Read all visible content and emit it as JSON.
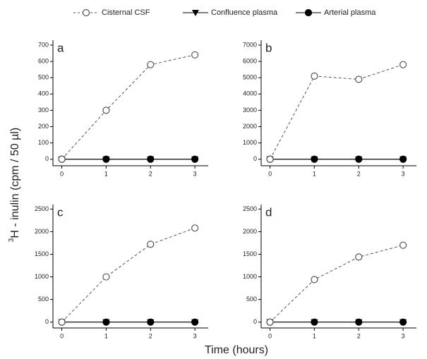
{
  "figure": {
    "ylabel_sup": "3",
    "ylabel": "H - inulin (cpm / 50 µl)",
    "xlabel": "Time (hours)"
  },
  "chart_data": [
    {
      "type": "line",
      "label": "a",
      "x": [
        0,
        1,
        2,
        3
      ],
      "xlim": [
        -0.2,
        3.3
      ],
      "xticks": [
        0,
        1,
        2,
        3
      ],
      "ylim": [
        -40,
        730
      ],
      "yticks": [
        0,
        100,
        200,
        300,
        400,
        500,
        600,
        700
      ],
      "series": [
        {
          "name": "Cisternal CSF",
          "color": "#555555",
          "marker": "open-circle",
          "dash": true,
          "values": [
            0,
            300,
            580,
            640
          ]
        },
        {
          "name": "Confluence plasma",
          "color": "#000000",
          "marker": "triangle",
          "dash": false,
          "values": [
            0,
            0,
            0,
            0
          ]
        },
        {
          "name": "Arterial plasma",
          "color": "#000000",
          "marker": "circle",
          "dash": false,
          "values": [
            0,
            0,
            0,
            0
          ]
        }
      ]
    },
    {
      "type": "line",
      "label": "b",
      "x": [
        0,
        1,
        2,
        3
      ],
      "xlim": [
        -0.2,
        3.3
      ],
      "xticks": [
        0,
        1,
        2,
        3
      ],
      "ylim": [
        -400,
        7300
      ],
      "yticks": [
        0,
        1000,
        2000,
        3000,
        4000,
        5000,
        6000,
        7000
      ],
      "series": [
        {
          "color": "#555555",
          "marker": "open-circle",
          "dash": true,
          "values": [
            0,
            5100,
            4900,
            5800
          ]
        },
        {
          "color": "#000000",
          "marker": "triangle",
          "dash": false,
          "values": [
            0,
            0,
            0,
            0
          ]
        },
        {
          "color": "#000000",
          "marker": "circle",
          "dash": false,
          "values": [
            0,
            0,
            0,
            0
          ]
        }
      ]
    },
    {
      "type": "line",
      "label": "c",
      "x": [
        0,
        1,
        2,
        3
      ],
      "xlim": [
        -0.2,
        3.3
      ],
      "xticks": [
        0,
        1,
        2,
        3
      ],
      "ylim": [
        -130,
        2600
      ],
      "yticks": [
        0,
        500,
        1000,
        1500,
        2000,
        2500
      ],
      "series": [
        {
          "color": "#555555",
          "marker": "open-circle",
          "dash": true,
          "values": [
            0,
            1000,
            1720,
            2080
          ]
        },
        {
          "color": "#000000",
          "marker": "triangle",
          "dash": false,
          "values": [
            0,
            0,
            0,
            0
          ]
        },
        {
          "color": "#000000",
          "marker": "circle",
          "dash": false,
          "values": [
            0,
            0,
            0,
            0
          ]
        }
      ]
    },
    {
      "type": "line",
      "label": "d",
      "x": [
        0,
        1,
        2,
        3
      ],
      "xlim": [
        -0.2,
        3.3
      ],
      "xticks": [
        0,
        1,
        2,
        3
      ],
      "ylim": [
        -130,
        2600
      ],
      "yticks": [
        0,
        500,
        1000,
        1500,
        2000,
        2500
      ],
      "series": [
        {
          "color": "#555555",
          "marker": "open-circle",
          "dash": true,
          "values": [
            0,
            940,
            1440,
            1700
          ]
        },
        {
          "color": "#000000",
          "marker": "triangle",
          "dash": false,
          "values": [
            0,
            0,
            0,
            0
          ]
        },
        {
          "color": "#000000",
          "marker": "circle",
          "dash": false,
          "values": [
            0,
            0,
            0,
            0
          ]
        }
      ]
    }
  ]
}
